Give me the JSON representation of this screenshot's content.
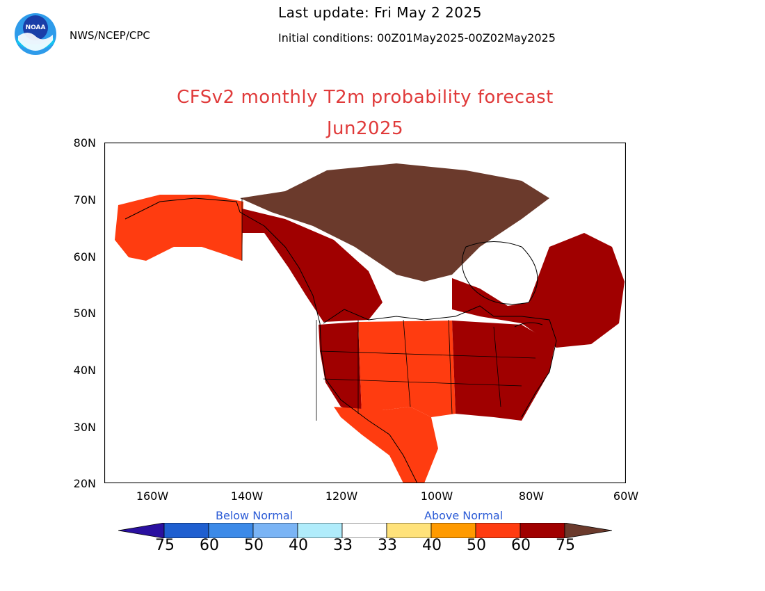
{
  "header": {
    "org": "NWS/NCEP/CPC",
    "last_update": "Last update: Fri May 2 2025",
    "initial_conditions": "Initial conditions: 00Z01May2025-00Z02May2025",
    "logo_text": "NOAA"
  },
  "title": "CFSv2 monthly T2m probability forecast",
  "subtitle": "Jun2025",
  "map": {
    "lat_ticks": [
      "80N",
      "70N",
      "60N",
      "50N",
      "40N",
      "30N",
      "20N"
    ],
    "lon_ticks": [
      "160W",
      "140W",
      "120W",
      "100W",
      "80W",
      "60W"
    ],
    "lat_range": [
      20,
      80
    ],
    "lon_range": [
      -170,
      -60
    ]
  },
  "legend": {
    "below_label": "Below Normal",
    "above_label": "Above Normal",
    "labels": [
      "75",
      "60",
      "50",
      "40",
      "33",
      "33",
      "40",
      "50",
      "60",
      "75"
    ],
    "colors": [
      "#2a10a0",
      "#1f5fd0",
      "#3c8ae8",
      "#7ab4f5",
      "#b0ecfb",
      "#ffffff",
      "#ffe27a",
      "#ff9a00",
      "#ff3c10",
      "#a00000",
      "#6b3a2c"
    ]
  },
  "regions": [
    {
      "name": "Alaska",
      "color": "#ff3c10"
    },
    {
      "name": "Canadian Arctic",
      "color": "#6b3a2c"
    },
    {
      "name": "Western Canada",
      "color": "#a00000"
    },
    {
      "name": "Eastern Canada",
      "color": "#a00000"
    },
    {
      "name": "Western US",
      "color": "#a00000"
    },
    {
      "name": "Central US",
      "color": "#ff3c10"
    },
    {
      "name": "Eastern US",
      "color": "#a00000"
    },
    {
      "name": "Mexico",
      "color": "#ff3c10"
    }
  ]
}
